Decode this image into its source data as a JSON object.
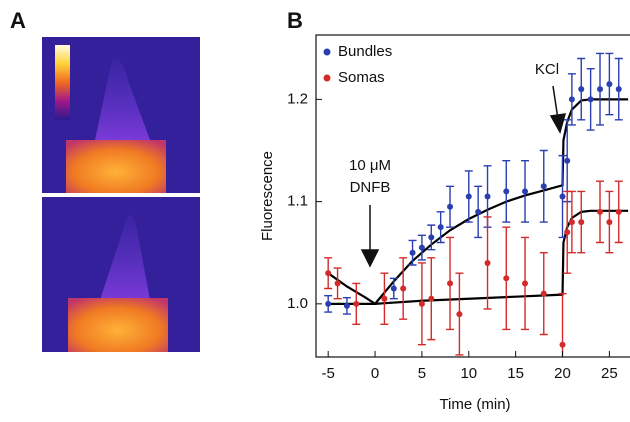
{
  "panels": {
    "a": "A",
    "b": "B"
  },
  "chart_data": {
    "type": "scatter",
    "x_label": "Time (min)",
    "y_label": "Fluorescence",
    "xlim": [
      -6.3,
      27.2
    ],
    "ylim": [
      0.948,
      1.263
    ],
    "xticks": [
      -5,
      0,
      5,
      10,
      15,
      20,
      25
    ],
    "yticks": [
      {
        "value": 1,
        "label": "1.0"
      },
      1.1,
      1.2
    ],
    "legend": "upper left",
    "series": [
      {
        "name": "Bundles",
        "color": "#2a3fb0",
        "x": [
          -5,
          -3,
          2,
          4,
          5,
          6,
          7,
          8,
          10,
          11,
          12,
          14,
          16,
          18,
          20,
          20.5,
          21,
          22,
          23,
          24,
          25,
          26
        ],
        "values": [
          1.0,
          0.998,
          1.015,
          1.05,
          1.055,
          1.065,
          1.075,
          1.095,
          1.105,
          1.09,
          1.105,
          1.11,
          1.11,
          1.115,
          1.105,
          1.14,
          1.2,
          1.21,
          1.2,
          1.21,
          1.215,
          1.21
        ],
        "errors": [
          0.008,
          0.008,
          0.01,
          0.012,
          0.012,
          0.012,
          0.015,
          0.02,
          0.025,
          0.025,
          0.03,
          0.03,
          0.03,
          0.035,
          0.04,
          0.04,
          0.025,
          0.03,
          0.03,
          0.035,
          0.03,
          0.03
        ]
      },
      {
        "name": "Somas",
        "color": "#d42a2a",
        "x": [
          -5,
          -4,
          -2,
          1,
          3,
          5,
          6,
          8,
          9,
          12,
          14,
          16,
          18,
          20,
          20.5,
          21,
          22,
          24,
          25,
          26
        ],
        "values": [
          1.03,
          1.02,
          1.0,
          1.005,
          1.015,
          1.0,
          1.005,
          1.02,
          0.99,
          1.04,
          1.025,
          1.02,
          1.01,
          0.96,
          1.07,
          1.08,
          1.08,
          1.09,
          1.08,
          1.09
        ],
        "errors": [
          0.015,
          0.015,
          0.02,
          0.025,
          0.03,
          0.04,
          0.04,
          0.045,
          0.04,
          0.045,
          0.05,
          0.045,
          0.04,
          0.05,
          0.04,
          0.03,
          0.03,
          0.03,
          0.03,
          0.03
        ]
      }
    ],
    "fits": [
      {
        "color": "#000000",
        "x": [
          -5,
          -2,
          0,
          2,
          4,
          6,
          8,
          10,
          12,
          14,
          16,
          18,
          20,
          20.1,
          20.5,
          21,
          22,
          23,
          27
        ],
        "values": [
          1.0,
          1.0,
          1.0,
          1.022,
          1.042,
          1.058,
          1.072,
          1.083,
          1.092,
          1.1,
          1.106,
          1.111,
          1.116,
          1.16,
          1.178,
          1.19,
          1.199,
          1.2,
          1.2
        ]
      },
      {
        "color": "#000000",
        "x": [
          -5,
          -3,
          -1,
          0,
          5,
          10,
          15,
          20,
          20.1,
          20.5,
          21,
          22,
          23,
          27
        ],
        "values": [
          1.03,
          1.017,
          1.006,
          1.0,
          1.003,
          1.005,
          1.007,
          1.009,
          1.06,
          1.075,
          1.084,
          1.09,
          1.091,
          1.091
        ]
      }
    ],
    "annotations": {
      "dnfb_dose": "10 μM",
      "dnfb": "DNFB",
      "kcl": "KCl"
    }
  }
}
